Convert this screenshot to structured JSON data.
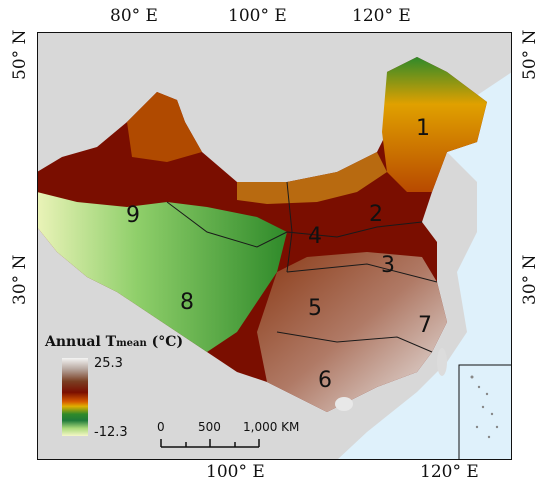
{
  "labels": {
    "top_80e": "80° E",
    "top_100e": "100° E",
    "top_120e": "120° E",
    "left_50n": "50° N",
    "left_30n": "30° N",
    "right_50n": "50° N",
    "right_30n": "30° N",
    "bottom_100e": "100° E",
    "bottom_120e": "120° E"
  },
  "legend": {
    "title_main": "Annual T",
    "title_sub": "mean",
    "title_unit": " (°C)",
    "max": "25.3",
    "min": "-12.3"
  },
  "scale": {
    "zero": "0",
    "mid": "500",
    "end": "1,000 KM"
  },
  "regions": {
    "r1": "1",
    "r2": "2",
    "r3": "3",
    "r4": "4",
    "r5": "5",
    "r6": "6",
    "r7": "7",
    "r8": "8",
    "r9": "9"
  },
  "colors": {
    "ocean": "#dff1fb",
    "land_other": "#d8d8d8",
    "hot": "#f3f3f3",
    "warm": "#7a0e00",
    "mid": "#e08a00",
    "cool": "#2f8a2a",
    "cold": "#f3f7c6"
  }
}
